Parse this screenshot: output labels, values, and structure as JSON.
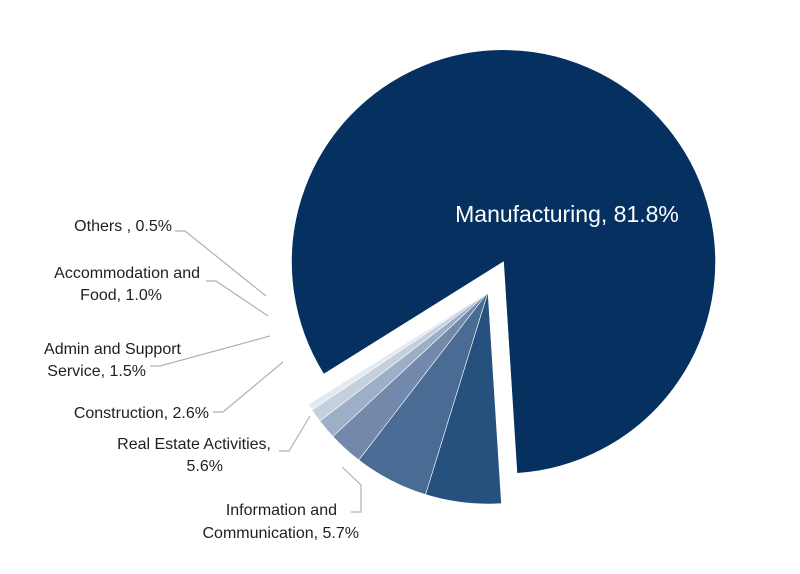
{
  "chart_data": {
    "type": "pie",
    "title": "",
    "slices": [
      {
        "label": "Manufacturing",
        "value": 81.8,
        "text": "Manufacturing, 81.8%",
        "color": "#05305f"
      },
      {
        "label": "Information and Communication",
        "value": 5.7,
        "text": "Information and Communication, 5.7%",
        "color": "#26507d"
      },
      {
        "label": "Real Estate Activities",
        "value": 5.6,
        "text": "Real Estate Activities, 5.6%",
        "color": "#4a6b93"
      },
      {
        "label": "Construction",
        "value": 2.6,
        "text": "Construction, 2.6%",
        "color": "#7289ab"
      },
      {
        "label": "Admin and Support Service",
        "value": 1.5,
        "text": "Admin and Support Service, 1.5%",
        "color": "#9dafc6"
      },
      {
        "label": "Accommodation and Food",
        "value": 1.0,
        "text": "Accommodation and Food, 1.0%",
        "color": "#c4d0de"
      },
      {
        "label": "Others",
        "value": 0.5,
        "text": "Others , 0.5%",
        "color": "#e3e9f1"
      }
    ],
    "legend": "none",
    "exploded_slice": "Manufacturing"
  },
  "labels": {
    "manufacturing": "Manufacturing, 81.8%",
    "others": "Others , 0.5%",
    "accommodation_1": "Accommodation and",
    "accommodation_2": "Food, 1.0%",
    "admin_1": "Admin and Support",
    "admin_2": "Service, 1.5%",
    "construction": "Construction, 2.6%",
    "realestate_1": "Real Estate Activities,",
    "realestate_2": "5.6%",
    "info_1": "Information and",
    "info_2": "Communication, 5.7%"
  }
}
